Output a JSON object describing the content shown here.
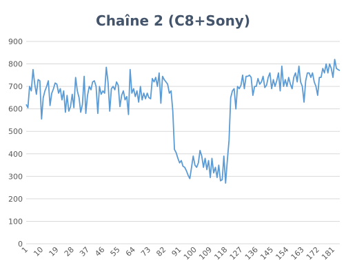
{
  "chart_data": {
    "type": "line",
    "title": "Chaîne 2 (C8+Sony)",
    "xlabel": "",
    "ylabel": "",
    "ylim": [
      0,
      900
    ],
    "y_ticks": [
      "0",
      "100",
      "200",
      "300",
      "400",
      "500",
      "600",
      "700",
      "800",
      "900"
    ],
    "x_tick_labels": [
      "1",
      "10",
      "19",
      "28",
      "37",
      "46",
      "55",
      "64",
      "73",
      "82",
      "91",
      "100",
      "109",
      "118",
      "127",
      "136",
      "145",
      "154",
      "163",
      "172",
      "181"
    ],
    "x_tick_positions": [
      1,
      10,
      19,
      28,
      37,
      46,
      55,
      64,
      73,
      82,
      91,
      100,
      109,
      118,
      127,
      136,
      145,
      154,
      163,
      172,
      181
    ],
    "grid": "horizontal",
    "legend": "none",
    "colors": {
      "line": "#5b9bd5",
      "title": "#44546a",
      "grid": "#d9d9d9",
      "text": "#595959"
    },
    "x": [
      1,
      2,
      3,
      4,
      5,
      6,
      7,
      8,
      9,
      10,
      11,
      12,
      13,
      14,
      15,
      16,
      17,
      18,
      19,
      20,
      21,
      22,
      23,
      24,
      25,
      26,
      27,
      28,
      29,
      30,
      31,
      32,
      33,
      34,
      35,
      36,
      37,
      38,
      39,
      40,
      41,
      42,
      43,
      44,
      45,
      46,
      47,
      48,
      49,
      50,
      51,
      52,
      53,
      54,
      55,
      56,
      57,
      58,
      59,
      60,
      61,
      62,
      63,
      64,
      65,
      66,
      67,
      68,
      69,
      70,
      71,
      72,
      73,
      74,
      75,
      76,
      77,
      78,
      79,
      80,
      81,
      82,
      83,
      84,
      85,
      86,
      87,
      88,
      89,
      90,
      91,
      92,
      93,
      94,
      95,
      96,
      97,
      98,
      99,
      100,
      101,
      102,
      103,
      104,
      105,
      106,
      107,
      108,
      109,
      110,
      111,
      112,
      113,
      114,
      115,
      116,
      117,
      118,
      119,
      120,
      121,
      122,
      123,
      124,
      125,
      126,
      127,
      128,
      129,
      130,
      131,
      132,
      133,
      134,
      135,
      136,
      137,
      138,
      139,
      140,
      141,
      142,
      143,
      144,
      145,
      146,
      147,
      148,
      149,
      150,
      151,
      152,
      153,
      154,
      155,
      156,
      157,
      158,
      159,
      160,
      161,
      162,
      163,
      164,
      165,
      166,
      167,
      168,
      169,
      170,
      171,
      172,
      173,
      174,
      175,
      176,
      177,
      178,
      179,
      180,
      181,
      182,
      183,
      184,
      185
    ],
    "series": [
      {
        "values": [
          620,
          605,
          700,
          680,
          775,
          710,
          665,
          730,
          725,
          555,
          650,
          680,
          700,
          725,
          615,
          670,
          690,
          715,
          710,
          670,
          690,
          640,
          680,
          585,
          660,
          590,
          610,
          665,
          605,
          740,
          680,
          650,
          585,
          620,
          745,
          580,
          660,
          700,
          685,
          720,
          725,
          700,
          580,
          700,
          665,
          680,
          670,
          785,
          720,
          590,
          690,
          700,
          685,
          720,
          705,
          610,
          660,
          680,
          640,
          655,
          575,
          775,
          670,
          690,
          655,
          680,
          630,
          700,
          640,
          670,
          645,
          670,
          650,
          645,
          735,
          720,
          740,
          700,
          760,
          625,
          745,
          730,
          720,
          710,
          670,
          680,
          590,
          420,
          405,
          380,
          360,
          370,
          345,
          340,
          325,
          305,
          290,
          340,
          390,
          350,
          340,
          360,
          415,
          390,
          340,
          380,
          330,
          370,
          295,
          380,
          315,
          340,
          295,
          350,
          280,
          285,
          390,
          270,
          370,
          460,
          650,
          680,
          690,
          600,
          700,
          690,
          705,
          750,
          690,
          745,
          745,
          750,
          740,
          660,
          700,
          700,
          735,
          710,
          720,
          745,
          695,
          705,
          740,
          760,
          690,
          730,
          700,
          725,
          760,
          680,
          790,
          700,
          730,
          700,
          740,
          710,
          690,
          740,
          760,
          720,
          790,
          720,
          700,
          630,
          725,
          760,
          760,
          740,
          760,
          720,
          700,
          660,
          740,
          740,
          780,
          760,
          800,
          760,
          800,
          780,
          740,
          820,
          780,
          775,
          770
        ]
      }
    ]
  }
}
